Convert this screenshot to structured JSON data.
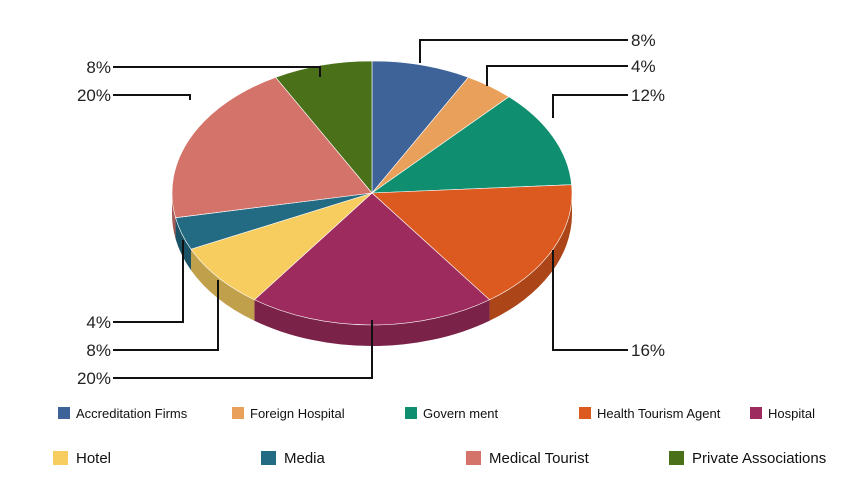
{
  "chart_data": {
    "type": "pie",
    "title": "",
    "categories": [
      "Accreditation Firms",
      "Foreign Hospital",
      "Government",
      "Health Tourism  Agent",
      "Hospital",
      "Hotel",
      "Media",
      "Medical Tourist",
      "Private Associations"
    ],
    "values": [
      8,
      4,
      12,
      16,
      20,
      8,
      4,
      20,
      8
    ],
    "labels": [
      "8%",
      "4%",
      "12%",
      "16%",
      "20%",
      "8%",
      "4%",
      "20%",
      "8%"
    ],
    "colors": [
      "#3d6399",
      "#e9a05a",
      "#0f8f6f",
      "#dc5a20",
      "#9e2b5d",
      "#f7cd60",
      "#236b83",
      "#d4736a",
      "#4a711a"
    ],
    "legend": {
      "position": "bottom",
      "rows": [
        [
          "Accreditation Firms",
          "Foreign Hospital",
          "Govern ment",
          "Health Tourism  Agent",
          "Hospital"
        ],
        [
          "Hotel",
          "Media",
          "Medical Tourist",
          "Private Associations"
        ]
      ]
    },
    "style": "3d"
  }
}
